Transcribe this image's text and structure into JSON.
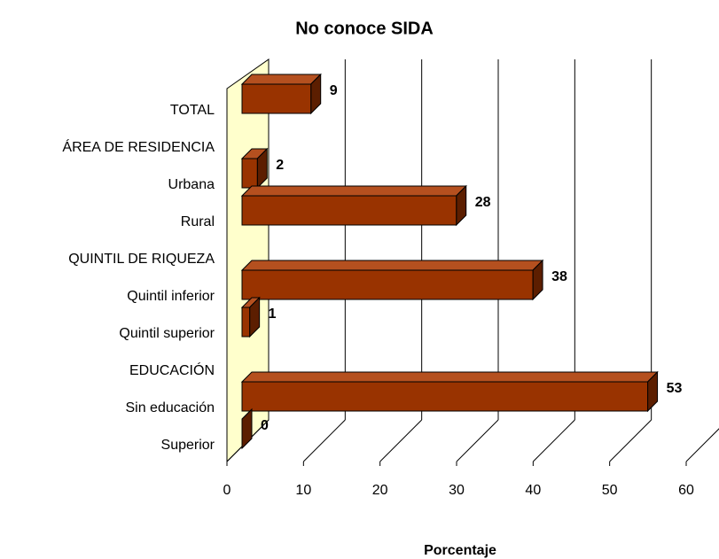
{
  "chart_data": {
    "type": "bar",
    "orientation": "horizontal",
    "title": "No conoce SIDA",
    "x_label": "Porcentaje",
    "categories": [
      "TOTAL",
      "ÁREA DE RESIDENCIA",
      "Urbana",
      "Rural",
      "QUINTIL DE RIQUEZA",
      "Quintil inferior",
      "Quintil superior",
      "EDUCACIÓN",
      "Sin educación",
      "Superior"
    ],
    "values": [
      9,
      null,
      2,
      28,
      null,
      38,
      1,
      null,
      53,
      0
    ],
    "color": "#993300",
    "xlim": [
      0,
      60
    ],
    "xticks": [
      0,
      10,
      20,
      30,
      40,
      50,
      60
    ],
    "grid": true
  }
}
